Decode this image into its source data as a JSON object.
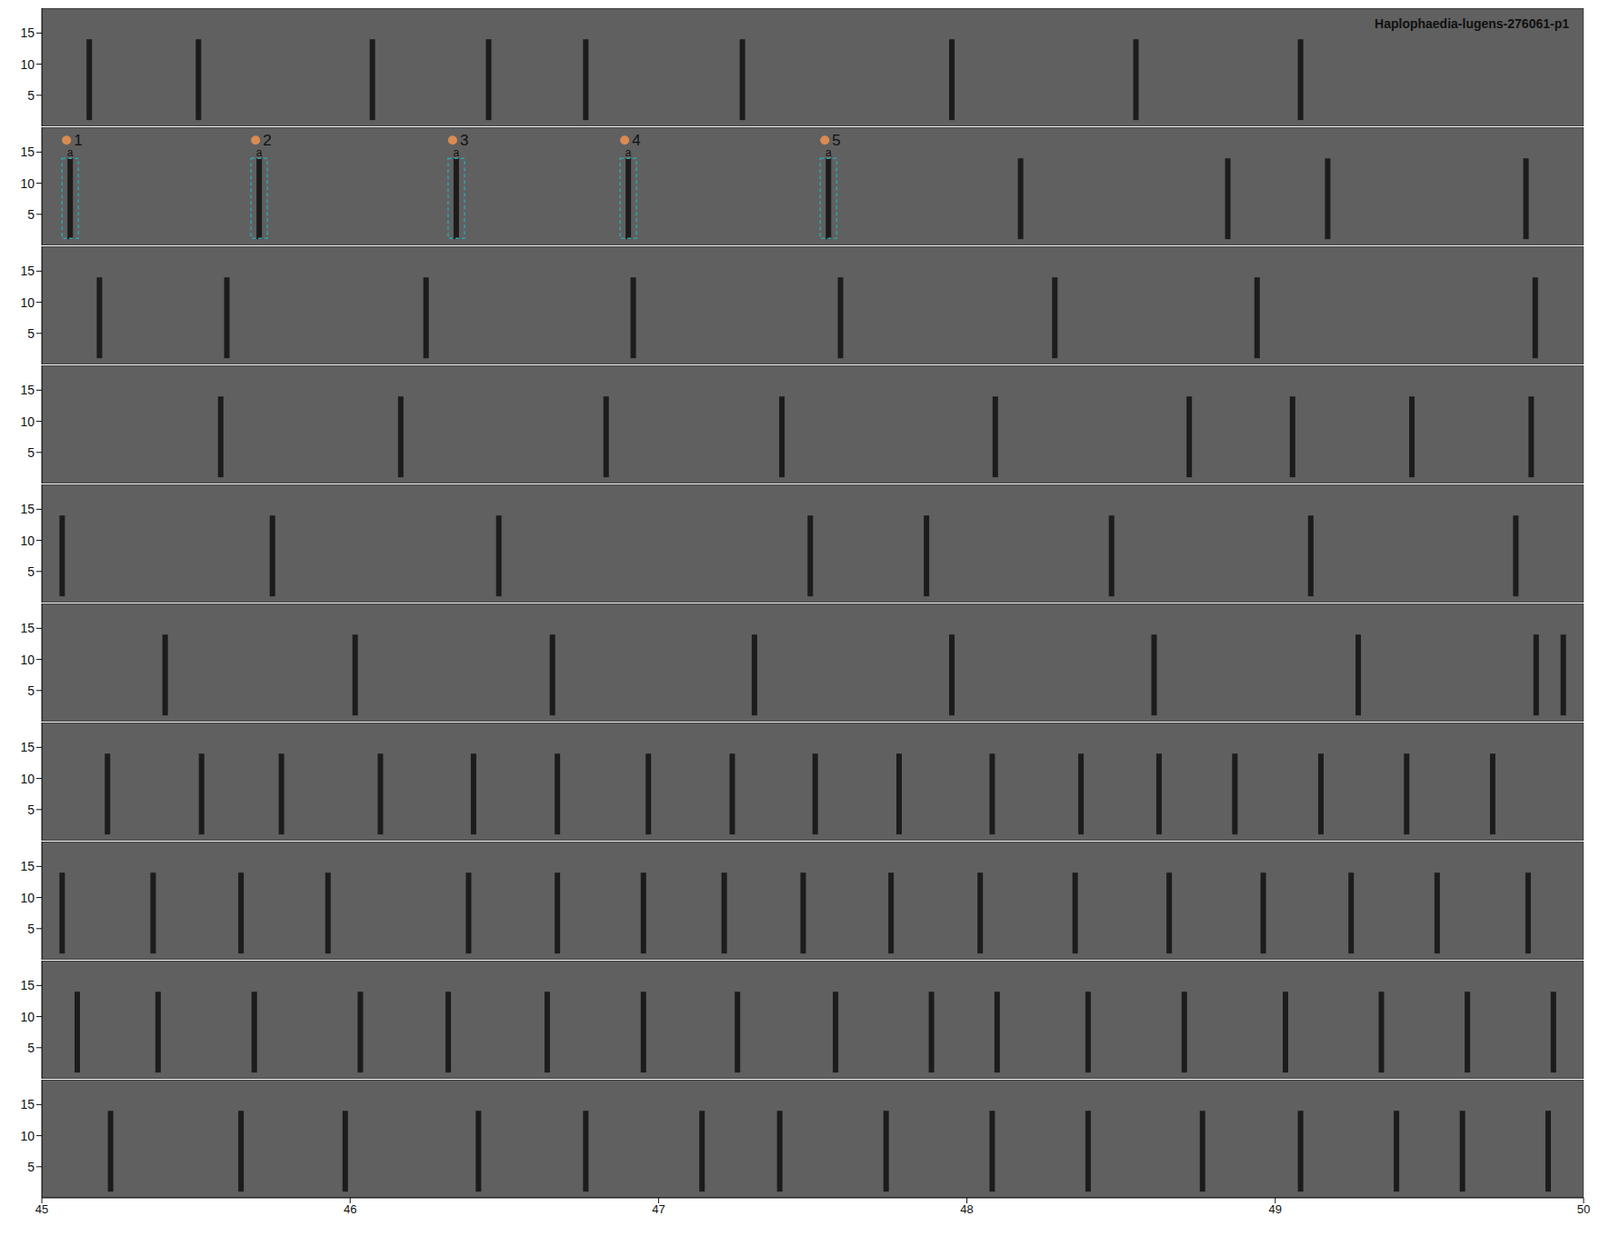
{
  "chart_data": {
    "type": "spectrogram",
    "title": "Haplophaedia-lugens-276061-p1",
    "xlim": [
      45,
      50
    ],
    "xticks": [
      45,
      46,
      47,
      48,
      49,
      50
    ],
    "ylim": [
      0,
      19
    ],
    "yticks": [
      5,
      10,
      15
    ],
    "call_band": [
      1,
      14
    ],
    "color": "#1c1c1c",
    "rows": [
      {
        "calls": [
          45.154,
          45.508,
          46.072,
          46.449,
          46.764,
          47.272,
          47.951,
          48.548,
          49.082
        ]
      },
      {
        "calls": [
          45.092,
          45.705,
          46.344,
          46.902,
          47.551,
          48.174,
          48.846,
          49.17,
          49.813
        ],
        "annotations": [
          {
            "label": "1",
            "segment": "a",
            "x": 45.092
          },
          {
            "label": "2",
            "segment": "a",
            "x": 45.705
          },
          {
            "label": "3",
            "segment": "a",
            "x": 46.344
          },
          {
            "label": "4",
            "segment": "a",
            "x": 46.902
          },
          {
            "label": "5",
            "segment": "a",
            "x": 47.551
          }
        ]
      },
      {
        "calls": [
          45.187,
          45.6,
          46.246,
          46.918,
          47.59,
          48.285,
          48.941,
          49.843
        ]
      },
      {
        "calls": [
          45.58,
          46.164,
          46.83,
          47.4,
          48.092,
          48.721,
          49.056,
          49.443,
          49.83
        ]
      },
      {
        "calls": [
          45.066,
          45.748,
          46.482,
          47.492,
          47.869,
          48.469,
          49.115,
          49.78
        ]
      },
      {
        "calls": [
          45.4,
          46.016,
          46.656,
          47.311,
          47.951,
          48.607,
          49.269,
          49.846,
          49.934
        ]
      },
      {
        "calls": [
          45.213,
          45.518,
          45.777,
          46.098,
          46.4,
          46.672,
          46.967,
          47.239,
          47.508,
          47.78,
          48.082,
          48.37,
          48.623,
          48.869,
          49.148,
          49.426,
          49.705
        ]
      },
      {
        "calls": [
          45.066,
          45.361,
          45.646,
          45.928,
          46.384,
          46.672,
          46.951,
          47.213,
          47.469,
          47.754,
          48.043,
          48.351,
          48.656,
          48.961,
          49.246,
          49.525,
          49.82
        ]
      },
      {
        "calls": [
          45.115,
          45.377,
          45.689,
          46.033,
          46.318,
          46.639,
          46.951,
          47.256,
          47.574,
          47.885,
          48.098,
          48.393,
          48.705,
          49.033,
          49.344,
          49.623,
          49.902
        ]
      },
      {
        "calls": [
          45.223,
          45.646,
          45.984,
          46.416,
          46.764,
          47.141,
          47.393,
          47.738,
          48.082,
          48.393,
          48.764,
          49.082,
          49.393,
          49.607,
          49.885
        ]
      }
    ]
  }
}
